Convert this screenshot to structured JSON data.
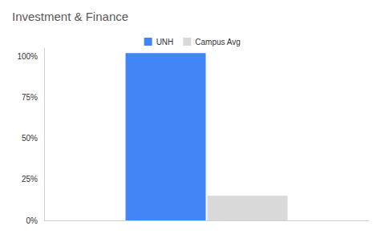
{
  "chart_data": {
    "type": "bar",
    "title": "Investment & Finance",
    "categories": [
      null
    ],
    "series": [
      {
        "name": "UNH",
        "color": "#4285f4",
        "values": [
          102
        ]
      },
      {
        "name": "Campus Avg",
        "color": "#d9d9d9",
        "values": [
          15
        ]
      }
    ],
    "ylim": [
      0,
      105
    ],
    "yticks": [
      {
        "value": 0,
        "label": "0%"
      },
      {
        "value": 25,
        "label": "25%"
      },
      {
        "value": 50,
        "label": "50%"
      },
      {
        "value": 75,
        "label": "75%"
      },
      {
        "value": 100,
        "label": "100%"
      }
    ],
    "grid": false,
    "legend": "top",
    "tick_labels": "y"
  }
}
